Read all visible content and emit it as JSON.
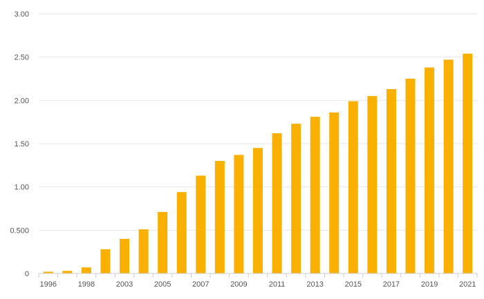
{
  "chart_data": {
    "type": "bar",
    "title": "",
    "xlabel": "",
    "ylabel": "",
    "categories": [
      "1996",
      "1997",
      "1998",
      "2002",
      "2003",
      "2004",
      "2005",
      "2006",
      "2007",
      "2008",
      "2009",
      "2010",
      "2011",
      "2012",
      "2013",
      "2014",
      "2015",
      "2016",
      "2017",
      "2018",
      "2019",
      "2020",
      "2021"
    ],
    "x_tick_labels": [
      "1996",
      "1998",
      "2003",
      "2005",
      "2007",
      "2009",
      "2011",
      "2013",
      "2015",
      "2017",
      "2019",
      "2021"
    ],
    "values": [
      0.02,
      0.03,
      0.07,
      0.28,
      0.4,
      0.51,
      0.71,
      0.94,
      1.13,
      1.3,
      1.37,
      1.45,
      1.62,
      1.73,
      1.81,
      1.86,
      1.99,
      2.05,
      2.13,
      2.25,
      2.38,
      2.47,
      2.54
    ],
    "ylim": [
      0,
      3.0
    ],
    "y_ticks": [
      0,
      0.5,
      1.0,
      1.5,
      2.0,
      2.5,
      3.0
    ],
    "y_tick_labels": [
      "0",
      "0.500",
      "1.00",
      "1.50",
      "2.00",
      "2.50",
      "3.00"
    ],
    "grid": true,
    "legend": "none",
    "bar_color": "#f9b000"
  }
}
